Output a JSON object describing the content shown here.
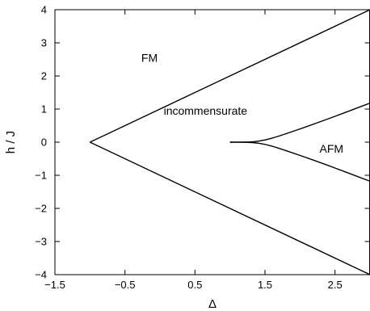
{
  "chart_data": {
    "type": "line",
    "title": "",
    "xlabel": "Δ",
    "ylabel": "h / J",
    "xlim": [
      -1.5,
      3.0
    ],
    "ylim": [
      -4,
      4
    ],
    "xticks": [
      -1.5,
      -0.5,
      0.5,
      1.5,
      2.5
    ],
    "xtick_labels": [
      "−1.5",
      "−0.5",
      "0.5",
      "1.5",
      "2.5"
    ],
    "yticks": [
      -4,
      -3,
      -2,
      -1,
      0,
      1,
      2,
      3,
      4
    ],
    "ytick_labels": [
      "−4",
      "−3",
      "−2",
      "−1",
      "0",
      "1",
      "2",
      "3",
      "4"
    ],
    "grid": false,
    "series": [
      {
        "x": [
          -1.0,
          3.0
        ],
        "y": [
          0.0,
          4.0
        ]
      },
      {
        "x": [
          -1.0,
          3.0
        ],
        "y": [
          0.0,
          -4.0
        ]
      },
      {
        "x": [
          1.0,
          1.2,
          1.4,
          1.6,
          2.0,
          2.5,
          3.0
        ],
        "y": [
          0.0,
          0.0,
          0.03,
          0.12,
          0.4,
          0.78,
          1.18
        ]
      },
      {
        "x": [
          1.0,
          1.2,
          1.4,
          1.6,
          2.0,
          2.5,
          3.0
        ],
        "y": [
          0.0,
          0.0,
          -0.03,
          -0.12,
          -0.4,
          -0.78,
          -1.18
        ]
      }
    ],
    "annotations": [
      {
        "text": "FM",
        "x": -0.15,
        "y": 2.55
      },
      {
        "text": "incommensurate",
        "x": 0.65,
        "y": 0.95
      },
      {
        "text": "AFM",
        "x": 2.45,
        "y": -0.2
      }
    ]
  }
}
